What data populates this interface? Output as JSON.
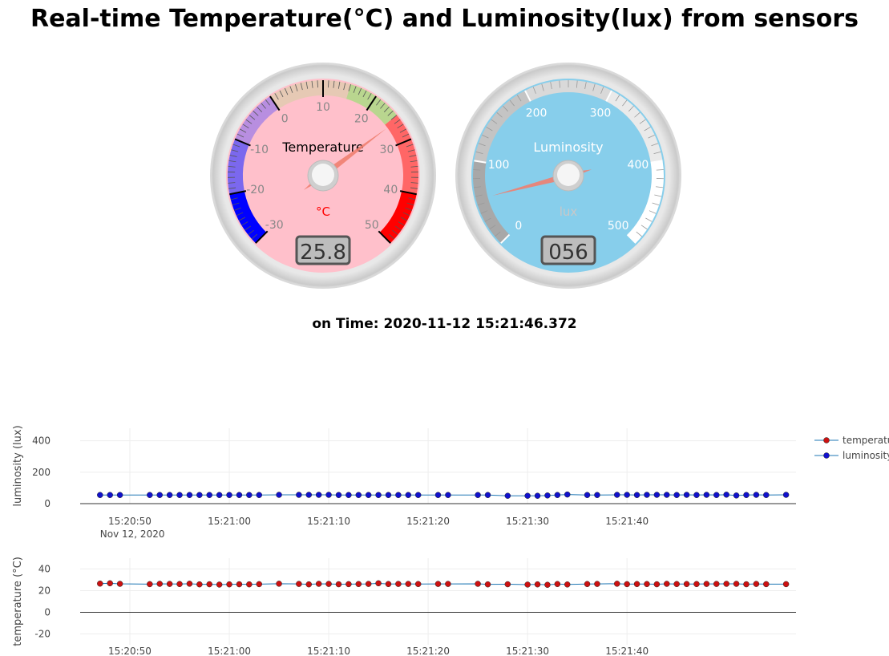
{
  "header": {
    "title": "Real-time Temperature(°C) and Luminosity(lux) from sensors"
  },
  "temperature_gauge": {
    "title": "Temperature",
    "units": "°C",
    "value": 25.8,
    "display": "25.8",
    "min": -30,
    "max": 50,
    "ticks": [
      "-30",
      "-20",
      "-10",
      "0",
      "10",
      "20",
      "30",
      "40",
      "50"
    ],
    "face_color": "#ffc0cb",
    "needle_color": "#f08070"
  },
  "luminosity_gauge": {
    "title": "Luminosity",
    "units": "lux",
    "value": 56,
    "display": "056",
    "min": 0,
    "max": 500,
    "ticks": [
      "0",
      "100",
      "200",
      "300",
      "400",
      "500"
    ],
    "face_color": "#87ceeb",
    "needle_color": "#f08070"
  },
  "timestamp": {
    "text": "on Time: 2020-11-12 15:21:46.372"
  },
  "legend": {
    "items": [
      "temperature",
      "luminosity"
    ]
  },
  "colors": {
    "temperature_marker": "#cc1111",
    "luminosity_marker": "#1111cc",
    "line": "#1f77b4"
  },
  "chart_data": [
    {
      "type": "scatter",
      "ylabel": "luminosity (lux)",
      "ylim": [
        0,
        480
      ],
      "yticks": [
        "0",
        "200",
        "400"
      ],
      "xtick_labels": [
        "15:20:50",
        "15:21:00",
        "15:21:10",
        "15:21:20",
        "15:21:30",
        "15:21:40"
      ],
      "x_date_label": "Nov 12, 2020",
      "grid": true,
      "legend_position": "top-right",
      "series": [
        {
          "name": "luminosity",
          "x": [
            47,
            48,
            49,
            52,
            53,
            54,
            55,
            56,
            57,
            58,
            59,
            60,
            61,
            62,
            63,
            65,
            67,
            68,
            69,
            70,
            71,
            72,
            73,
            74,
            75,
            76,
            77,
            78,
            79,
            81,
            82,
            85,
            86,
            88,
            90,
            91,
            92,
            93,
            94,
            96,
            97,
            99,
            100,
            101,
            102,
            103,
            104,
            105,
            106,
            107,
            108,
            109,
            110,
            111,
            112,
            113,
            114,
            116
          ],
          "y": [
            55,
            55,
            55,
            55,
            55,
            55,
            55,
            55,
            55,
            55,
            55,
            55,
            55,
            55,
            55,
            56,
            56,
            56,
            56,
            56,
            55,
            55,
            55,
            55,
            55,
            55,
            55,
            55,
            55,
            55,
            55,
            55,
            55,
            50,
            50,
            50,
            52,
            55,
            58,
            55,
            55,
            56,
            56,
            55,
            56,
            56,
            56,
            55,
            56,
            55,
            56,
            55,
            57,
            52,
            55,
            56,
            55,
            56
          ]
        }
      ]
    },
    {
      "type": "scatter",
      "ylabel": "temperature (°C)",
      "ylim": [
        -30,
        50
      ],
      "yticks": [
        "-20",
        "0",
        "20",
        "40"
      ],
      "xtick_labels": [
        "15:20:50",
        "15:21:00",
        "15:21:10",
        "15:21:20",
        "15:21:30",
        "15:21:40"
      ],
      "grid": true,
      "series": [
        {
          "name": "temperature",
          "x": [
            47,
            48,
            49,
            52,
            53,
            54,
            55,
            56,
            57,
            58,
            59,
            60,
            61,
            62,
            63,
            65,
            67,
            68,
            69,
            70,
            71,
            72,
            73,
            74,
            75,
            76,
            77,
            78,
            79,
            81,
            82,
            85,
            86,
            88,
            90,
            91,
            92,
            93,
            94,
            96,
            97,
            99,
            100,
            101,
            102,
            103,
            104,
            105,
            106,
            107,
            108,
            109,
            110,
            111,
            112,
            113,
            114,
            116
          ],
          "y": [
            26.5,
            26.8,
            26.3,
            26,
            26.3,
            26.2,
            26.1,
            26.4,
            25.8,
            25.9,
            25.6,
            25.8,
            25.9,
            25.8,
            26,
            26.4,
            26.2,
            25.8,
            26.3,
            26.2,
            25.9,
            26,
            26.1,
            26.2,
            26.8,
            26.1,
            26.2,
            26.2,
            26.1,
            26.2,
            26.2,
            26.3,
            25.8,
            25.9,
            25.6,
            25.8,
            25.4,
            26.1,
            25.7,
            26.1,
            26.2,
            26.4,
            26,
            26.1,
            26.1,
            25.9,
            26.3,
            26.1,
            26.1,
            26.1,
            26.2,
            26.2,
            26.3,
            26.3,
            25.9,
            26.2,
            26,
            26
          ]
        }
      ]
    }
  ]
}
